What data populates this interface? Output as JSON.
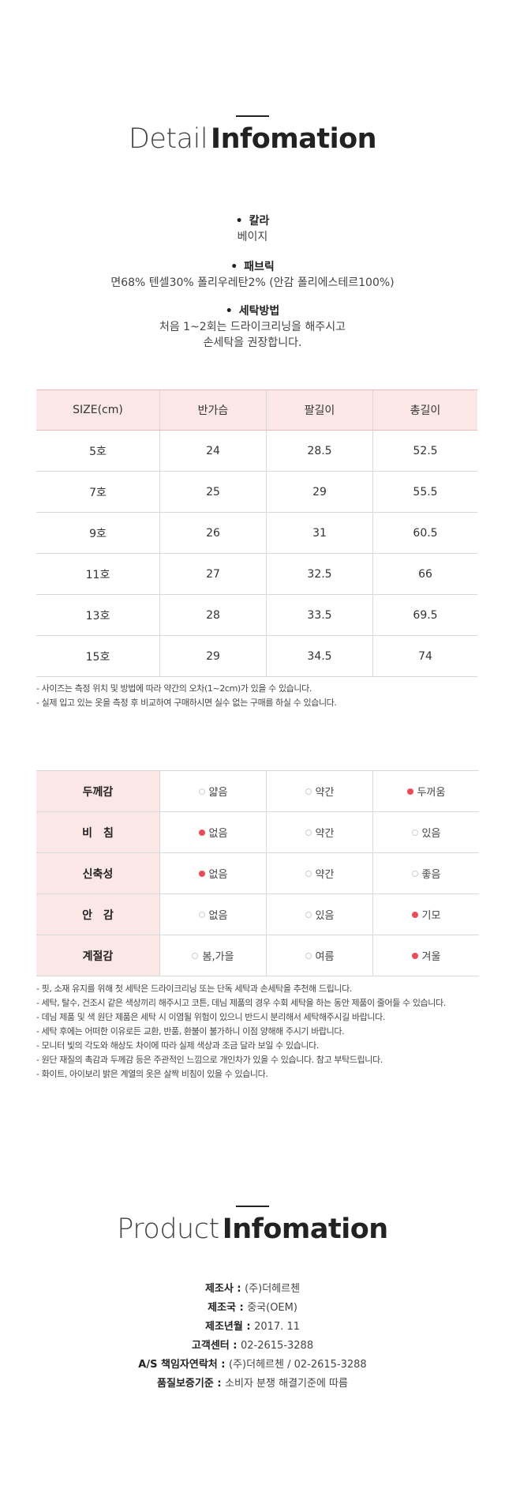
{
  "detail_title": {
    "light": "Detail",
    "bold": "Infomation"
  },
  "specs": [
    {
      "label": "칼라",
      "lines": [
        "베이지"
      ]
    },
    {
      "label": "패브릭",
      "lines": [
        "면68% 텐셀30% 폴리우레탄2% (안감 폴리에스테르100%)"
      ]
    },
    {
      "label": "세탁방법",
      "lines": [
        "처음 1~2회는 드라이크리닝을 해주시고",
        "손세탁을 권장합니다."
      ]
    }
  ],
  "size_table": {
    "headers": [
      "SIZE(cm)",
      "반가슴",
      "팔길이",
      "총길이"
    ],
    "rows": [
      [
        "5호",
        "24",
        "28.5",
        "52.5"
      ],
      [
        "7호",
        "25",
        "29",
        "55.5"
      ],
      [
        "9호",
        "26",
        "31",
        "60.5"
      ],
      [
        "11호",
        "27",
        "32.5",
        "66"
      ],
      [
        "13호",
        "28",
        "33.5",
        "69.5"
      ],
      [
        "15호",
        "29",
        "34.5",
        "74"
      ]
    ]
  },
  "size_notes": [
    "- 사이즈는 측정 위치 및 방법에 따라 약간의 오차(1~2cm)가 있을 수 있습니다.",
    "- 실제 입고 있는 옷을 측정 후 비교하여 구매하시면 실수 없는 구매를 하실 수 있습니다."
  ],
  "property_table": {
    "rows": [
      {
        "label": "두께감",
        "options": [
          "얇음",
          "약간",
          "두꺼움"
        ],
        "selected": 2
      },
      {
        "label": "비　침",
        "options": [
          "없음",
          "약간",
          "있음"
        ],
        "selected": 0
      },
      {
        "label": "신축성",
        "options": [
          "없음",
          "약간",
          "좋음"
        ],
        "selected": 0
      },
      {
        "label": "안　감",
        "options": [
          "없음",
          "있음",
          "기모"
        ],
        "selected": 2
      },
      {
        "label": "계절감",
        "options": [
          "봄,가을",
          "여름",
          "겨울"
        ],
        "selected": 2
      }
    ],
    "selected_color": "#ee4b57",
    "header_bg": "#fce7e7"
  },
  "care_notes": [
    "- 핏, 소재 유지를 위해 첫 세탁은 드라이크리닝 또는 단독 세탁과 손세탁을 추천해 드립니다.",
    "- 세탁, 탈수, 건조시 같은 색상끼리 해주시고 코튼, 데님 제품의 경우 수회 세탁을 하는 동안 제품이 줄어들 수 있습니다.",
    "- 데님 제품 및 색 원단 제품은 세탁 시 이염될 위험이 있으니 반드시 분리해서 세탁해주시길 바랍니다.",
    "- 세탁 후에는 어떠한 이유로든 교환, 반품, 환불이 불가하니 이점 양해해 주시기 바랍니다.",
    "- 모니터 빛의 각도와 해상도 차이에 따라 실제 색상과 조금 달라 보일 수 있습니다.",
    "- 원단 재질의 촉감과 두께감 등은 주관적인 느낌으로 개인차가 있을 수 있습니다. 참고 부탁드립니다.",
    "- 화이트, 아이보리 밝은 계열의 옷은 살짝 비침이 있을 수 있습니다."
  ],
  "product_title": {
    "light": "Product",
    "bold": "Infomation"
  },
  "product_info": [
    {
      "key": "제조사 : ",
      "value": "(주)더헤르첸"
    },
    {
      "key": "제조국 : ",
      "value": "중국(OEM)"
    },
    {
      "key": "제조년월 : ",
      "value": "2017. 11"
    },
    {
      "key": "고객센터 : ",
      "value": "02-2615-3288"
    },
    {
      "key": "A/S 책임자연락처 : ",
      "value": "(주)더헤르첸 / 02-2615-3288"
    },
    {
      "key": "품질보증기준 : ",
      "value": "소비자 분쟁 해결기준에 따름"
    }
  ]
}
